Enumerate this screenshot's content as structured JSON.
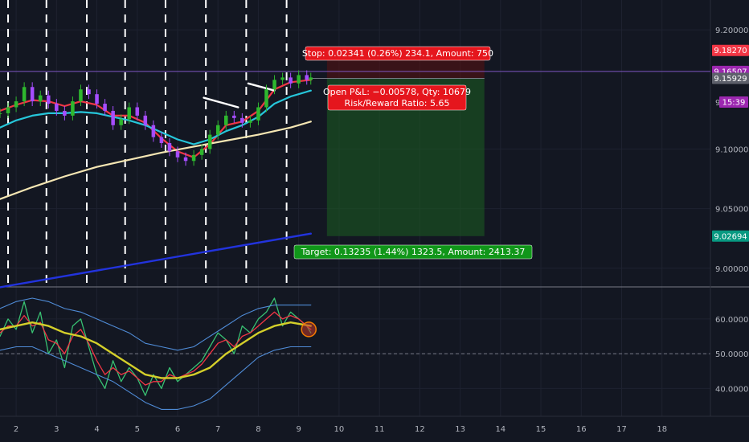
{
  "chart_data": [
    {
      "type": "line",
      "panel": "price",
      "x_axis": {
        "tick_labels": [
          "2",
          "3",
          "4",
          "5",
          "6",
          "7",
          "8",
          "9",
          "10",
          "11",
          "12",
          "13",
          "14",
          "15",
          "16",
          "17",
          "18"
        ],
        "tick_values": [
          2,
          3,
          4,
          5,
          6,
          7,
          8,
          9,
          10,
          11,
          12,
          13,
          14,
          15,
          16,
          17,
          18
        ],
        "range": [
          1.6,
          19.2
        ]
      },
      "y_axis": {
        "tick_labels": [
          "9.20000",
          "9.10000",
          "9.05000",
          "9.00000"
        ],
        "tick_values": [
          9.2,
          9.1,
          9.05,
          9.0
        ],
        "range": [
          8.985,
          9.225
        ],
        "extra_tick": "9"
      },
      "price_tags": [
        {
          "label": "9.18270",
          "value": 9.1827,
          "color": "#f23645"
        },
        {
          "label": "9.16507",
          "value": 9.16507,
          "color": "#9c27b0"
        },
        {
          "label": "15:39",
          "value": 9.1485,
          "color": "#9c27b0"
        },
        {
          "label": "9.15929",
          "value": 9.15929,
          "color": "#5d606b"
        },
        {
          "label": "9.02694",
          "value": 9.02694,
          "color": "#089981"
        }
      ],
      "current_price": 9.16507,
      "session_separators_x": [
        1.8,
        2.75,
        3.75,
        4.7,
        5.7,
        6.7,
        7.7,
        8.7
      ],
      "series": [
        {
          "kind": "candles_close",
          "color_up": "#2eb82e",
          "color_down": "#a64dff",
          "x": [
            1.6,
            1.8,
            2.0,
            2.2,
            2.4,
            2.6,
            2.8,
            3.0,
            3.2,
            3.4,
            3.6,
            3.8,
            4.0,
            4.2,
            4.4,
            4.6,
            4.8,
            5.0,
            5.2,
            5.4,
            5.6,
            5.8,
            6.0,
            6.2,
            6.4,
            6.6,
            6.8,
            7.0,
            7.2,
            7.4,
            7.6,
            7.8,
            8.0,
            8.2,
            8.4,
            8.6,
            8.8,
            9.0,
            9.2,
            9.3
          ],
          "values": [
            9.13,
            9.135,
            9.14,
            9.152,
            9.14,
            9.145,
            9.138,
            9.132,
            9.128,
            9.14,
            9.15,
            9.146,
            9.138,
            9.132,
            9.12,
            9.125,
            9.135,
            9.128,
            9.12,
            9.11,
            9.105,
            9.098,
            9.093,
            9.09,
            9.095,
            9.1,
            9.112,
            9.12,
            9.128,
            9.126,
            9.122,
            9.124,
            9.135,
            9.15,
            9.158,
            9.16,
            9.155,
            9.162,
            9.158,
            9.16
          ]
        },
        {
          "kind": "ma",
          "color": "#f23645",
          "x": [
            1.6,
            2.0,
            2.4,
            2.8,
            3.2,
            3.6,
            4.0,
            4.4,
            4.8,
            5.2,
            5.6,
            6.0,
            6.4,
            6.8,
            7.2,
            7.6,
            8.0,
            8.4,
            8.8,
            9.3
          ],
          "values": [
            9.132,
            9.137,
            9.141,
            9.14,
            9.136,
            9.14,
            9.137,
            9.128,
            9.128,
            9.122,
            9.109,
            9.098,
            9.093,
            9.104,
            9.12,
            9.123,
            9.132,
            9.15,
            9.156,
            9.158
          ]
        },
        {
          "kind": "ma",
          "color": "#26c6da",
          "x": [
            1.6,
            2.0,
            2.4,
            2.8,
            3.2,
            3.6,
            4.0,
            4.4,
            4.8,
            5.2,
            5.6,
            6.0,
            6.4,
            6.8,
            7.2,
            7.6,
            8.0,
            8.4,
            8.8,
            9.3
          ],
          "values": [
            9.118,
            9.124,
            9.128,
            9.13,
            9.13,
            9.131,
            9.13,
            9.127,
            9.124,
            9.12,
            9.114,
            9.108,
            9.104,
            9.108,
            9.115,
            9.12,
            9.127,
            9.138,
            9.144,
            9.149
          ]
        },
        {
          "kind": "ma",
          "color": "#f5e6b3",
          "x": [
            1.6,
            2.4,
            3.2,
            4.0,
            4.8,
            5.6,
            6.4,
            7.2,
            8.0,
            8.8,
            9.3
          ],
          "values": [
            9.058,
            9.068,
            9.077,
            9.085,
            9.091,
            9.097,
            9.102,
            9.107,
            9.112,
            9.118,
            9.123
          ]
        },
        {
          "kind": "trendline",
          "color": "#2233dd",
          "x": [
            1.6,
            9.3
          ],
          "values": [
            8.984,
            9.029
          ]
        },
        {
          "kind": "trendline",
          "color": "#ffffff",
          "x": [
            6.65,
            7.5
          ],
          "values": [
            9.143,
            9.135
          ]
        },
        {
          "kind": "trendline",
          "color": "#ffffff",
          "x": [
            7.75,
            8.4
          ],
          "values": [
            9.155,
            9.149
          ]
        }
      ],
      "position": {
        "type": "long",
        "entry": 9.15929,
        "stop": 9.1827,
        "target": 9.02694,
        "x_start": 9.3,
        "x_fill_start": 9.7,
        "x_end": 13.6,
        "profit_fill_color": "#1b5e20",
        "risk_fill_color": "#5a1010"
      },
      "annotations": {
        "stop_label": "Stop: 0.02341 (0.26%) 234.1, Amount: 750",
        "pnl_label": "Open P&L: −0.00578, Qty: 10679",
        "rr_label": "Risk/Reward Ratio: 5.65",
        "target_label": "Target: 0.13235 (1.44%) 1323.5, Amount: 2413.37"
      }
    },
    {
      "type": "line",
      "panel": "oscillator",
      "y_axis": {
        "tick_labels": [
          "60.00000",
          "50.00000",
          "40.00000"
        ],
        "tick_values": [
          60,
          50,
          40
        ],
        "range": [
          32,
          69
        ],
        "dashed_levels": [
          50
        ]
      },
      "series": [
        {
          "kind": "osc_green",
          "color": "#38c172",
          "x": [
            1.6,
            1.8,
            2.0,
            2.2,
            2.4,
            2.6,
            2.8,
            3.0,
            3.2,
            3.4,
            3.6,
            3.8,
            4.0,
            4.2,
            4.4,
            4.6,
            4.8,
            5.0,
            5.2,
            5.4,
            5.6,
            5.8,
            6.0,
            6.2,
            6.4,
            6.6,
            6.8,
            7.0,
            7.2,
            7.4,
            7.6,
            7.8,
            8.0,
            8.2,
            8.4,
            8.6,
            8.8,
            9.0,
            9.2,
            9.3
          ],
          "values": [
            55,
            60,
            57,
            65,
            56,
            62,
            50,
            54,
            46,
            58,
            60,
            52,
            44,
            40,
            48,
            42,
            46,
            43,
            38,
            44,
            40,
            46,
            42,
            44,
            46,
            48,
            52,
            56,
            54,
            50,
            58,
            56,
            60,
            62,
            66,
            58,
            62,
            60,
            58,
            56
          ]
        },
        {
          "kind": "osc_red",
          "color": "#f23645",
          "x": [
            1.6,
            1.8,
            2.0,
            2.2,
            2.4,
            2.6,
            2.8,
            3.0,
            3.2,
            3.4,
            3.6,
            3.8,
            4.0,
            4.2,
            4.4,
            4.6,
            4.8,
            5.0,
            5.2,
            5.4,
            5.6,
            5.8,
            6.0,
            6.2,
            6.4,
            6.6,
            6.8,
            7.0,
            7.2,
            7.4,
            7.6,
            7.8,
            8.0,
            8.2,
            8.4,
            8.6,
            8.8,
            9.0,
            9.2,
            9.3
          ],
          "values": [
            56,
            58,
            58,
            61,
            58,
            59,
            54,
            53,
            50,
            55,
            57,
            53,
            48,
            44,
            46,
            44,
            45,
            43,
            41,
            42,
            42,
            44,
            43,
            44,
            45,
            47,
            50,
            53,
            54,
            52,
            55,
            56,
            58,
            60,
            62,
            60,
            61,
            60,
            58,
            57
          ]
        },
        {
          "kind": "osc_yellow",
          "color": "#d4cf2a",
          "x": [
            1.6,
            2.0,
            2.4,
            2.8,
            3.2,
            3.6,
            4.0,
            4.4,
            4.8,
            5.2,
            5.6,
            6.0,
            6.4,
            6.8,
            7.2,
            7.6,
            8.0,
            8.4,
            8.8,
            9.3
          ],
          "values": [
            57,
            58,
            59,
            58,
            56,
            55,
            53,
            50,
            47,
            44,
            43,
            43,
            44,
            46,
            50,
            53,
            56,
            58,
            59,
            58
          ]
        },
        {
          "kind": "band_upper",
          "color": "#4f8bd6",
          "x": [
            1.6,
            2.0,
            2.4,
            2.8,
            3.2,
            3.6,
            4.0,
            4.4,
            4.8,
            5.2,
            5.6,
            6.0,
            6.4,
            6.8,
            7.2,
            7.6,
            8.0,
            8.4,
            8.8,
            9.3
          ],
          "values": [
            63,
            65,
            66,
            65,
            63,
            62,
            60,
            58,
            56,
            53,
            52,
            51,
            52,
            55,
            58,
            61,
            63,
            64,
            64,
            64
          ]
        },
        {
          "kind": "band_lower",
          "color": "#4f8bd6",
          "x": [
            1.6,
            2.0,
            2.4,
            2.8,
            3.2,
            3.6,
            4.0,
            4.4,
            4.8,
            5.2,
            5.6,
            6.0,
            6.4,
            6.8,
            7.2,
            7.6,
            8.0,
            8.4,
            8.8,
            9.3
          ],
          "values": [
            51,
            52,
            52,
            50,
            48,
            46,
            44,
            42,
            39,
            36,
            34,
            34,
            35,
            37,
            41,
            45,
            49,
            51,
            52,
            52
          ]
        }
      ],
      "marker": {
        "x": 9.25,
        "value": 57,
        "color": "#f57c00"
      }
    }
  ]
}
